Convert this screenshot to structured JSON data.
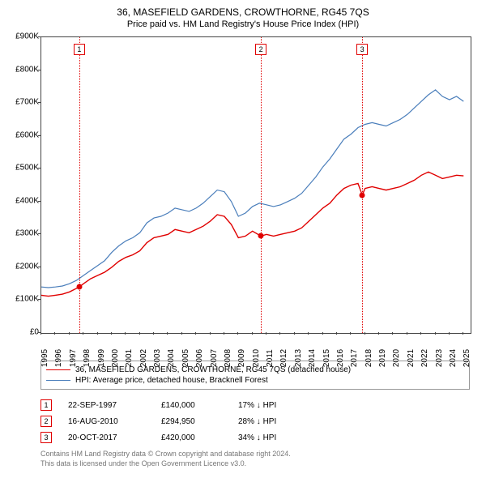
{
  "title": "36, MASEFIELD GARDENS, CROWTHORNE, RG45 7QS",
  "subtitle": "Price paid vs. HM Land Registry's House Price Index (HPI)",
  "chart": {
    "type": "line",
    "background_color": "#ffffff",
    "axis_color": "#444444",
    "y": {
      "min": 0,
      "max": 900000,
      "ticks": [
        0,
        100000,
        200000,
        300000,
        400000,
        500000,
        600000,
        700000,
        800000,
        900000
      ],
      "tick_labels": [
        "£0",
        "£100K",
        "£200K",
        "£300K",
        "£400K",
        "£500K",
        "£600K",
        "£700K",
        "£800K",
        "£900K"
      ],
      "label_fontsize": 10
    },
    "x": {
      "ticks": [
        1995,
        1996,
        1997,
        1998,
        1999,
        2000,
        2001,
        2002,
        2003,
        2004,
        2005,
        2006,
        2007,
        2008,
        2009,
        2010,
        2011,
        2012,
        2013,
        2014,
        2015,
        2016,
        2017,
        2018,
        2019,
        2020,
        2021,
        2022,
        2023,
        2024,
        2025
      ],
      "min": 1995,
      "max": 2025.5,
      "label_fontsize": 10
    },
    "series": [
      {
        "name": "36, MASEFIELD GARDENS, CROWTHORNE, RG45 7QS (detached house)",
        "color": "#e00000",
        "line_width": 1.4,
        "data": [
          [
            1995.0,
            115000
          ],
          [
            1995.5,
            112000
          ],
          [
            1996.0,
            115000
          ],
          [
            1996.5,
            118000
          ],
          [
            1997.0,
            125000
          ],
          [
            1997.7,
            140000
          ],
          [
            1998.0,
            150000
          ],
          [
            1998.5,
            165000
          ],
          [
            1999.0,
            175000
          ],
          [
            1999.5,
            185000
          ],
          [
            2000.0,
            200000
          ],
          [
            2000.5,
            218000
          ],
          [
            2001.0,
            230000
          ],
          [
            2001.5,
            238000
          ],
          [
            2002.0,
            250000
          ],
          [
            2002.5,
            275000
          ],
          [
            2003.0,
            290000
          ],
          [
            2003.5,
            295000
          ],
          [
            2004.0,
            300000
          ],
          [
            2004.5,
            315000
          ],
          [
            2005.0,
            310000
          ],
          [
            2005.5,
            305000
          ],
          [
            2006.0,
            315000
          ],
          [
            2006.5,
            325000
          ],
          [
            2007.0,
            340000
          ],
          [
            2007.5,
            360000
          ],
          [
            2008.0,
            355000
          ],
          [
            2008.5,
            330000
          ],
          [
            2009.0,
            290000
          ],
          [
            2009.5,
            295000
          ],
          [
            2010.0,
            310000
          ],
          [
            2010.6,
            294950
          ],
          [
            2011.0,
            300000
          ],
          [
            2011.5,
            295000
          ],
          [
            2012.0,
            300000
          ],
          [
            2012.5,
            305000
          ],
          [
            2013.0,
            310000
          ],
          [
            2013.5,
            320000
          ],
          [
            2014.0,
            340000
          ],
          [
            2014.5,
            360000
          ],
          [
            2015.0,
            380000
          ],
          [
            2015.5,
            395000
          ],
          [
            2016.0,
            420000
          ],
          [
            2016.5,
            440000
          ],
          [
            2017.0,
            450000
          ],
          [
            2017.5,
            455000
          ],
          [
            2017.8,
            420000
          ],
          [
            2018.0,
            440000
          ],
          [
            2018.5,
            445000
          ],
          [
            2019.0,
            440000
          ],
          [
            2019.5,
            435000
          ],
          [
            2020.0,
            440000
          ],
          [
            2020.5,
            445000
          ],
          [
            2021.0,
            455000
          ],
          [
            2021.5,
            465000
          ],
          [
            2022.0,
            480000
          ],
          [
            2022.5,
            490000
          ],
          [
            2023.0,
            480000
          ],
          [
            2023.5,
            470000
          ],
          [
            2024.0,
            475000
          ],
          [
            2024.5,
            480000
          ],
          [
            2025.0,
            478000
          ]
        ]
      },
      {
        "name": "HPI: Average price, detached house, Bracknell Forest",
        "color": "#4a7ebb",
        "line_width": 1.2,
        "data": [
          [
            1995.0,
            140000
          ],
          [
            1995.5,
            138000
          ],
          [
            1996.0,
            140000
          ],
          [
            1996.5,
            143000
          ],
          [
            1997.0,
            150000
          ],
          [
            1997.5,
            160000
          ],
          [
            1998.0,
            175000
          ],
          [
            1998.5,
            190000
          ],
          [
            1999.0,
            205000
          ],
          [
            1999.5,
            220000
          ],
          [
            2000.0,
            245000
          ],
          [
            2000.5,
            265000
          ],
          [
            2001.0,
            280000
          ],
          [
            2001.5,
            290000
          ],
          [
            2002.0,
            305000
          ],
          [
            2002.5,
            335000
          ],
          [
            2003.0,
            350000
          ],
          [
            2003.5,
            355000
          ],
          [
            2004.0,
            365000
          ],
          [
            2004.5,
            380000
          ],
          [
            2005.0,
            375000
          ],
          [
            2005.5,
            370000
          ],
          [
            2006.0,
            380000
          ],
          [
            2006.5,
            395000
          ],
          [
            2007.0,
            415000
          ],
          [
            2007.5,
            435000
          ],
          [
            2008.0,
            430000
          ],
          [
            2008.5,
            400000
          ],
          [
            2009.0,
            355000
          ],
          [
            2009.5,
            365000
          ],
          [
            2010.0,
            385000
          ],
          [
            2010.5,
            395000
          ],
          [
            2011.0,
            390000
          ],
          [
            2011.5,
            385000
          ],
          [
            2012.0,
            390000
          ],
          [
            2012.5,
            400000
          ],
          [
            2013.0,
            410000
          ],
          [
            2013.5,
            425000
          ],
          [
            2014.0,
            450000
          ],
          [
            2014.5,
            475000
          ],
          [
            2015.0,
            505000
          ],
          [
            2015.5,
            530000
          ],
          [
            2016.0,
            560000
          ],
          [
            2016.5,
            590000
          ],
          [
            2017.0,
            605000
          ],
          [
            2017.5,
            625000
          ],
          [
            2018.0,
            635000
          ],
          [
            2018.5,
            640000
          ],
          [
            2019.0,
            635000
          ],
          [
            2019.5,
            630000
          ],
          [
            2020.0,
            640000
          ],
          [
            2020.5,
            650000
          ],
          [
            2021.0,
            665000
          ],
          [
            2021.5,
            685000
          ],
          [
            2022.0,
            705000
          ],
          [
            2022.5,
            725000
          ],
          [
            2023.0,
            740000
          ],
          [
            2023.5,
            720000
          ],
          [
            2024.0,
            710000
          ],
          [
            2024.5,
            720000
          ],
          [
            2025.0,
            705000
          ]
        ]
      }
    ],
    "events": [
      {
        "n": "1",
        "date": "22-SEP-1997",
        "x": 1997.7,
        "price": 140000,
        "price_label": "£140,000",
        "diff": "17% ↓ HPI",
        "color": "#e00000"
      },
      {
        "n": "2",
        "date": "16-AUG-2010",
        "x": 2010.6,
        "price": 294950,
        "price_label": "£294,950",
        "diff": "28% ↓ HPI",
        "color": "#e00000"
      },
      {
        "n": "3",
        "date": "20-OCT-2017",
        "x": 2017.8,
        "price": 420000,
        "price_label": "£420,000",
        "diff": "34% ↓ HPI",
        "color": "#e00000"
      }
    ]
  },
  "legend": {
    "border_color": "#999999",
    "fontsize": 10
  },
  "attribution": {
    "line1": "Contains HM Land Registry data © Crown copyright and database right 2024.",
    "line2": "This data is licensed under the Open Government Licence v3.0.",
    "color": "#777777",
    "fontsize": 9
  }
}
